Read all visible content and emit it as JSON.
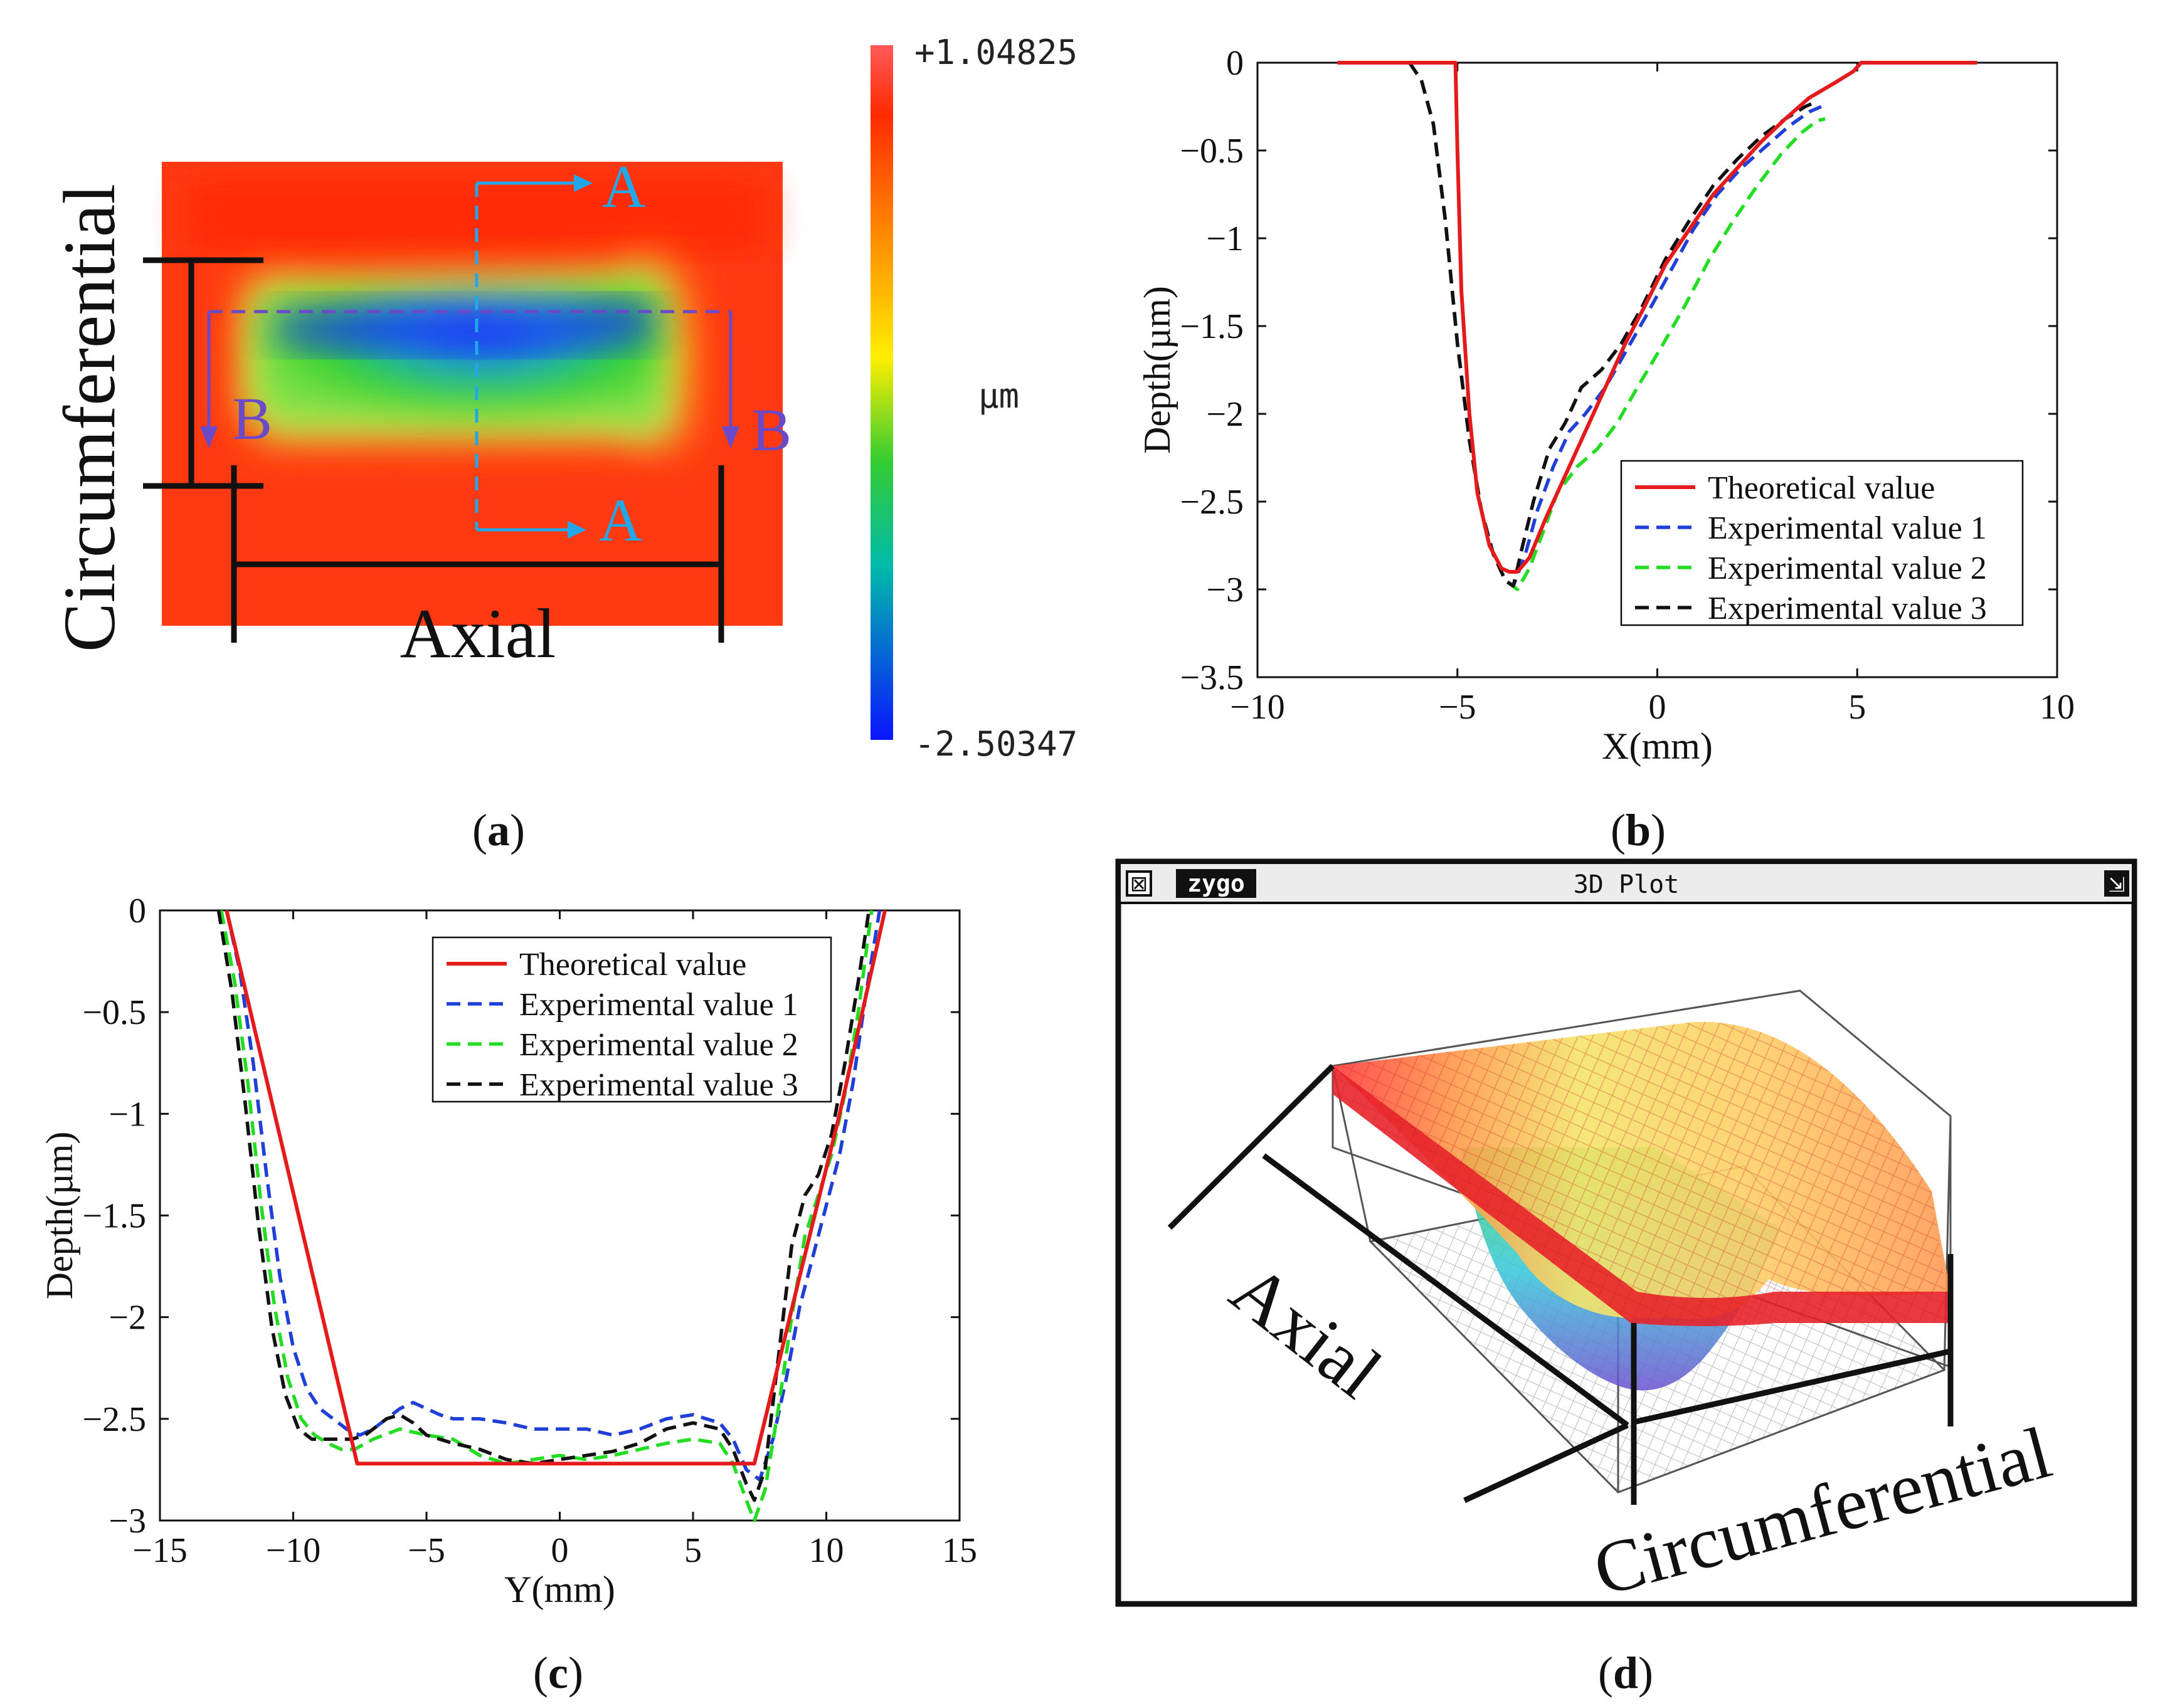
{
  "panel_captions": [
    "a",
    "b",
    "c",
    "d"
  ],
  "panel_a": {
    "colorbar_max": "+1.04825",
    "colorbar_min": "-2.50347",
    "colorbar_unit": "µm",
    "label_circumferential": "Circumferential",
    "label_axial": "Axial",
    "section_a": "A",
    "section_b": "B"
  },
  "panel_d": {
    "app_logo": "zygo",
    "window_title": "3D Plot",
    "label_axial": "Axial",
    "label_circumferential": "Circumferential"
  },
  "chart_data": [
    {
      "id": "b",
      "type": "line",
      "xlabel": "X(mm)",
      "ylabel": "Depth(µm)",
      "xlim": [
        -10,
        10
      ],
      "ylim": [
        -3.5,
        0
      ],
      "xticks": [
        -10,
        -5,
        0,
        5,
        10
      ],
      "yticks": [
        0,
        -0.5,
        -1,
        -1.5,
        -2,
        -2.5,
        -3,
        -3.5
      ],
      "xtick_labels": [
        "−10",
        "−5",
        "0",
        "5",
        "10"
      ],
      "ytick_labels": [
        "0",
        "−0.5",
        "−1",
        "−1.5",
        "−2",
        "−2.5",
        "−3",
        "−3.5"
      ],
      "legend_position": "lower-right",
      "series": [
        {
          "name": "Theoretical value",
          "color": "#e41a1c",
          "dash": "solid",
          "x": [
            -8,
            -5.05,
            -5,
            -4.9,
            -4.7,
            -4.5,
            -4.2,
            -3.9,
            -3.7,
            -3.5,
            -3.2,
            -2.8,
            -2.3,
            -1.8,
            -1.3,
            -0.8,
            -0.3,
            0.2,
            0.8,
            1.4,
            2.0,
            2.6,
            3.2,
            3.8,
            4.4,
            4.9,
            5.1,
            8
          ],
          "y": [
            0,
            0,
            -0.5,
            -1.3,
            -2.0,
            -2.45,
            -2.75,
            -2.88,
            -2.9,
            -2.9,
            -2.82,
            -2.6,
            -2.35,
            -2.1,
            -1.85,
            -1.6,
            -1.38,
            -1.15,
            -0.95,
            -0.75,
            -0.6,
            -0.45,
            -0.32,
            -0.2,
            -0.12,
            -0.05,
            0,
            0
          ]
        },
        {
          "name": "Experimental value 1",
          "color": "#1f3fd6",
          "dash": "dashed",
          "x": [
            -6.2,
            -5.9,
            -5.6,
            -5.3,
            -5.0,
            -4.7,
            -4.4,
            -4.1,
            -3.8,
            -3.6,
            -3.3,
            -3.0,
            -2.6,
            -2.2,
            -1.8,
            -1.3,
            -0.8,
            -0.3,
            0.3,
            0.9,
            1.5,
            2.1,
            2.7,
            3.3,
            3.8,
            4.1
          ],
          "y": [
            0,
            -0.1,
            -0.35,
            -0.9,
            -1.6,
            -2.15,
            -2.55,
            -2.8,
            -2.95,
            -2.98,
            -2.8,
            -2.55,
            -2.3,
            -2.1,
            -2.0,
            -1.85,
            -1.65,
            -1.45,
            -1.2,
            -0.95,
            -0.75,
            -0.6,
            -0.48,
            -0.36,
            -0.28,
            -0.25
          ]
        },
        {
          "name": "Experimental value 2",
          "color": "#22dd22",
          "dash": "dashed",
          "x": [
            -6.2,
            -5.9,
            -5.6,
            -5.3,
            -5.0,
            -4.7,
            -4.4,
            -4.1,
            -3.8,
            -3.5,
            -3.2,
            -2.9,
            -2.5,
            -2.0,
            -1.5,
            -1.0,
            -0.5,
            0.1,
            0.7,
            1.3,
            1.9,
            2.5,
            3.1,
            3.6,
            4.0,
            4.2
          ],
          "y": [
            0,
            -0.1,
            -0.35,
            -0.9,
            -1.6,
            -2.15,
            -2.55,
            -2.8,
            -2.95,
            -3.0,
            -2.88,
            -2.7,
            -2.45,
            -2.3,
            -2.2,
            -2.05,
            -1.85,
            -1.62,
            -1.38,
            -1.12,
            -0.9,
            -0.7,
            -0.52,
            -0.4,
            -0.33,
            -0.32
          ]
        },
        {
          "name": "Experimental value 3",
          "color": "#111111",
          "dash": "dashed",
          "x": [
            -6.2,
            -5.9,
            -5.6,
            -5.3,
            -5.0,
            -4.7,
            -4.4,
            -4.1,
            -3.8,
            -3.6,
            -3.4,
            -3.1,
            -2.7,
            -2.3,
            -1.9,
            -1.4,
            -0.9,
            -0.4,
            0.2,
            0.8,
            1.4,
            2.0,
            2.6,
            3.2,
            3.7,
            4.0
          ],
          "y": [
            0,
            -0.1,
            -0.35,
            -0.9,
            -1.6,
            -2.15,
            -2.55,
            -2.8,
            -2.95,
            -2.98,
            -2.78,
            -2.5,
            -2.2,
            -2.05,
            -1.85,
            -1.75,
            -1.6,
            -1.4,
            -1.12,
            -0.9,
            -0.7,
            -0.55,
            -0.42,
            -0.32,
            -0.25,
            -0.22
          ]
        }
      ]
    },
    {
      "id": "c",
      "type": "line",
      "xlabel": "Y(mm)",
      "ylabel": "Depth(µm)",
      "xlim": [
        -15,
        15
      ],
      "ylim": [
        -3,
        0
      ],
      "xticks": [
        -15,
        -10,
        -5,
        0,
        5,
        10,
        15
      ],
      "yticks": [
        0,
        -0.5,
        -1,
        -1.5,
        -2,
        -2.5,
        -3
      ],
      "xtick_labels": [
        "−15",
        "−10",
        "−5",
        "0",
        "5",
        "10",
        "15"
      ],
      "ytick_labels": [
        "0",
        "−0.5",
        "−1",
        "−1.5",
        "−2",
        "−2.5",
        "−3"
      ],
      "legend_position": "top-right",
      "series": [
        {
          "name": "Theoretical value",
          "color": "#e41a1c",
          "dash": "solid",
          "x": [
            -12.5,
            -7.6,
            7.3,
            9.0,
            10.5,
            12.2
          ],
          "y": [
            0,
            -2.72,
            -2.72,
            -1.8,
            -1.0,
            0
          ]
        },
        {
          "name": "Experimental value 1",
          "color": "#1f3fd6",
          "dash": "dashed",
          "x": [
            -12.5,
            -12.0,
            -11.5,
            -11.0,
            -10.5,
            -10.0,
            -9.5,
            -9.0,
            -8.5,
            -8.0,
            -7.5,
            -7.0,
            -6.5,
            -6.0,
            -5.5,
            -5.0,
            -4.5,
            -4.0,
            -3.0,
            -2.0,
            -1.0,
            0.0,
            1.0,
            2.0,
            3.0,
            4.0,
            5.0,
            6.0,
            6.5,
            7.0,
            7.5,
            8.0,
            8.5,
            9.0,
            9.5,
            10.0,
            10.5,
            11.0,
            11.5,
            12.0
          ],
          "y": [
            0,
            -0.3,
            -0.75,
            -1.3,
            -1.8,
            -2.15,
            -2.35,
            -2.45,
            -2.5,
            -2.55,
            -2.58,
            -2.55,
            -2.5,
            -2.45,
            -2.42,
            -2.45,
            -2.48,
            -2.5,
            -2.5,
            -2.52,
            -2.55,
            -2.55,
            -2.55,
            -2.58,
            -2.55,
            -2.5,
            -2.48,
            -2.52,
            -2.6,
            -2.75,
            -2.8,
            -2.6,
            -2.3,
            -1.95,
            -1.7,
            -1.45,
            -1.2,
            -0.85,
            -0.4,
            0
          ]
        },
        {
          "name": "Experimental value 2",
          "color": "#22dd22",
          "dash": "dashed",
          "x": [
            -12.7,
            -12.2,
            -11.7,
            -11.2,
            -10.7,
            -10.2,
            -9.7,
            -9.2,
            -8.7,
            -8.2,
            -7.7,
            -7.0,
            -6.0,
            -5.0,
            -4.0,
            -3.0,
            -2.0,
            -1.0,
            0.0,
            1.0,
            2.0,
            3.0,
            4.0,
            5.0,
            6.0,
            6.5,
            7.0,
            7.3,
            7.7,
            8.2,
            8.7,
            9.2,
            9.7,
            10.2,
            10.7,
            11.2,
            11.7
          ],
          "y": [
            0,
            -0.35,
            -0.85,
            -1.45,
            -1.95,
            -2.3,
            -2.5,
            -2.58,
            -2.62,
            -2.65,
            -2.65,
            -2.6,
            -2.55,
            -2.58,
            -2.6,
            -2.68,
            -2.72,
            -2.7,
            -2.68,
            -2.7,
            -2.68,
            -2.65,
            -2.62,
            -2.6,
            -2.62,
            -2.72,
            -2.9,
            -3.0,
            -2.85,
            -2.45,
            -2.0,
            -1.6,
            -1.4,
            -1.2,
            -0.9,
            -0.5,
            0
          ]
        },
        {
          "name": "Experimental value 3",
          "color": "#111111",
          "dash": "dashed",
          "x": [
            -12.8,
            -12.3,
            -11.8,
            -11.3,
            -10.8,
            -10.3,
            -9.8,
            -9.3,
            -8.8,
            -8.3,
            -7.8,
            -7.3,
            -6.5,
            -6.0,
            -5.5,
            -5.0,
            -4.0,
            -3.0,
            -2.0,
            -1.0,
            0.0,
            1.0,
            2.0,
            3.0,
            4.0,
            5.0,
            6.0,
            6.5,
            7.0,
            7.3,
            7.7,
            8.2,
            8.7,
            9.2,
            9.7,
            10.2,
            10.7,
            11.2,
            11.6
          ],
          "y": [
            0,
            -0.4,
            -0.95,
            -1.55,
            -2.05,
            -2.38,
            -2.55,
            -2.6,
            -2.6,
            -2.6,
            -2.6,
            -2.58,
            -2.5,
            -2.48,
            -2.52,
            -2.58,
            -2.62,
            -2.65,
            -2.7,
            -2.72,
            -2.7,
            -2.68,
            -2.66,
            -2.62,
            -2.55,
            -2.52,
            -2.55,
            -2.65,
            -2.82,
            -2.9,
            -2.75,
            -2.2,
            -1.65,
            -1.4,
            -1.3,
            -1.1,
            -0.75,
            -0.35,
            0
          ]
        }
      ]
    }
  ]
}
